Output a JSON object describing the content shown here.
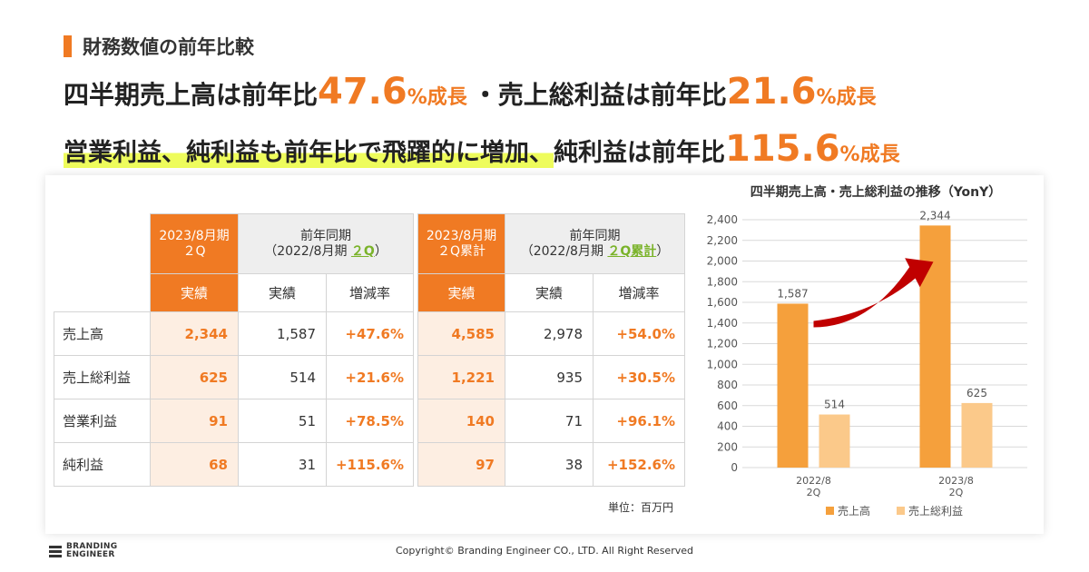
{
  "section_label": "財務数値の前年比較",
  "headline1": {
    "a": "四半期売上高は前年比",
    "v1": "47.6",
    "p1": "%成長",
    "b": "・売上総利益は前年比",
    "v2": "21.6",
    "p2": "%成長"
  },
  "headline2": {
    "highlight": "営業利益、純利益も前年比で飛躍的に増加、",
    "a": "純利益は前年比",
    "v": "115.6",
    "p": "%成長"
  },
  "table1": {
    "col_current": [
      "2023/8月期",
      "２Q"
    ],
    "col_prior": [
      "前年同期",
      "（2022/8月期 ",
      "２Q",
      "）"
    ],
    "sub": [
      "実績",
      "実績",
      "増減率"
    ],
    "rows": [
      {
        "label": "売上高",
        "current": "2,344",
        "prior": "1,587",
        "change": "+47.6%"
      },
      {
        "label": "売上総利益",
        "current": "625",
        "prior": "514",
        "change": "+21.6%"
      },
      {
        "label": "営業利益",
        "current": "91",
        "prior": "51",
        "change": "+78.5%"
      },
      {
        "label": "純利益",
        "current": "68",
        "prior": "31",
        "change": "+115.6%"
      }
    ]
  },
  "table2": {
    "col_current": [
      "2023/8月期",
      "２Q累計"
    ],
    "col_prior": [
      "前年同期",
      "（2022/8月期 ",
      "２Q累計",
      "）"
    ],
    "sub": [
      "実績",
      "実績",
      "増減率"
    ],
    "rows": [
      {
        "current": "4,585",
        "prior": "2,978",
        "change": "+54.0%"
      },
      {
        "current": "1,221",
        "prior": "935",
        "change": "+30.5%"
      },
      {
        "current": "140",
        "prior": "71",
        "change": "+96.1%"
      },
      {
        "current": "97",
        "prior": "38",
        "change": "+152.6%"
      }
    ]
  },
  "unit_note": "単位：百万円",
  "chart_data": {
    "type": "bar",
    "title": "四半期売上高・売上総利益の推移（YonY）",
    "categories": [
      [
        "2022/8",
        "2Q"
      ],
      [
        "2023/8",
        "2Q"
      ]
    ],
    "series": [
      {
        "name": "売上高",
        "values": [
          1587,
          2344
        ],
        "color": "#f5a03c"
      },
      {
        "name": "売上総利益",
        "values": [
          514,
          625
        ],
        "color": "#fbc98a"
      }
    ],
    "data_labels": [
      [
        "1,587",
        "2,344"
      ],
      [
        "514",
        "625"
      ]
    ],
    "ylim": [
      0,
      2400
    ],
    "yticks": [
      "0",
      "200",
      "400",
      "600",
      "800",
      "1,000",
      "1,200",
      "1,400",
      "1,600",
      "1,800",
      "2,000",
      "2,200",
      "2,400"
    ],
    "grid": true,
    "legend": "bottom",
    "arrow_color": "#c00000"
  },
  "colors": {
    "accent": "#f07a23",
    "highlight": "#eefc5c",
    "underline_green": "#7ab32a"
  },
  "brand": {
    "line1": "BRANDING",
    "line2": "ENGINEER"
  },
  "copyright": "Copyright© Branding Engineer CO., LTD. All Right Reserved"
}
